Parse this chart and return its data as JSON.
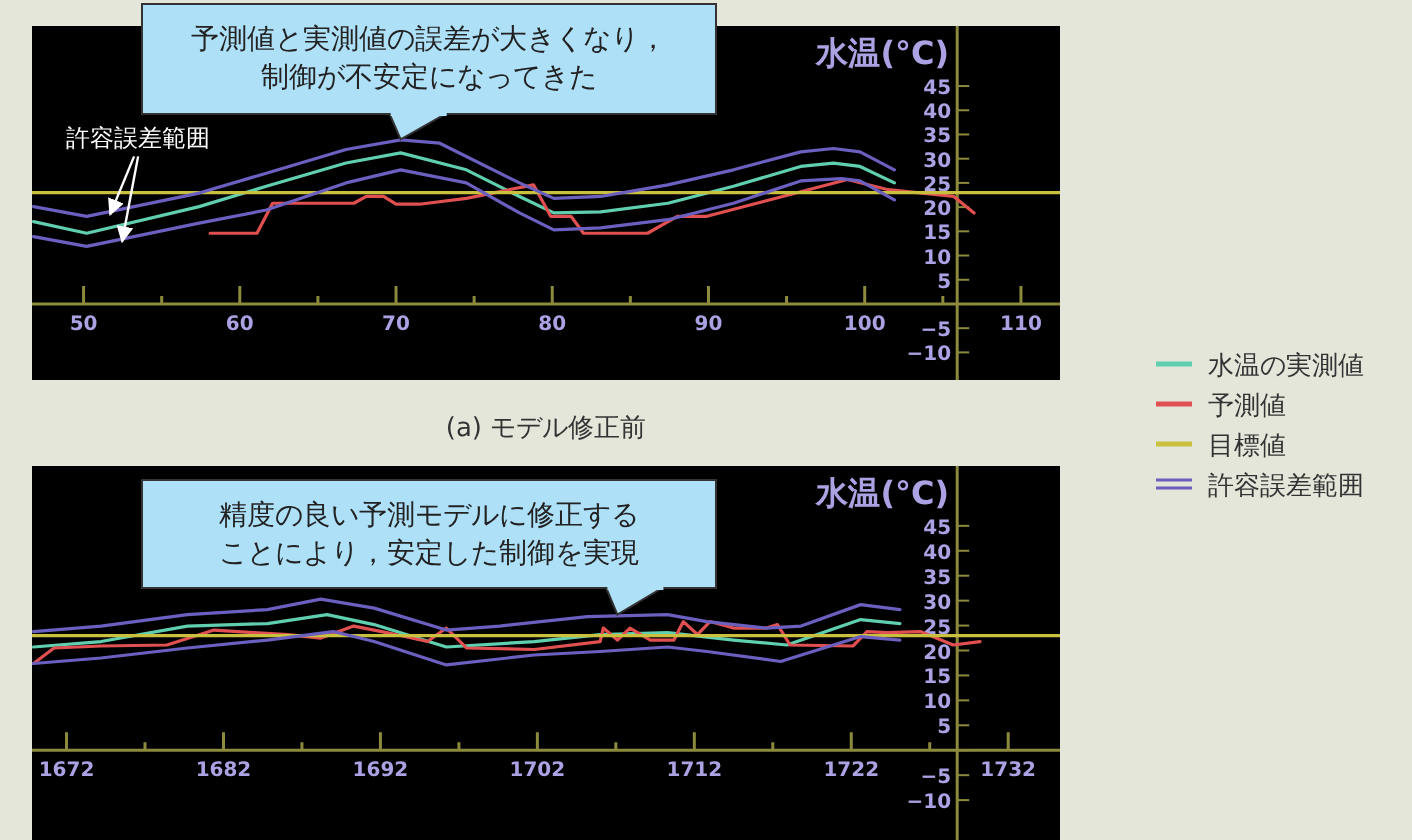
{
  "chart_data": [
    {
      "type": "line",
      "title": "(a) モデル修正前",
      "ylabel": "水温(°C)",
      "legend": "right",
      "grid": false,
      "xlim": [
        46.7,
        112.5
      ],
      "ylim": [
        -15.7,
        57.4
      ],
      "xticks": [
        50,
        {
          "value": 55,
          "label": null
        },
        60,
        {
          "value": 65,
          "label": null
        },
        70,
        {
          "value": 75,
          "label": null
        },
        80,
        {
          "value": 85,
          "label": null
        },
        90,
        {
          "value": 95,
          "label": null
        },
        100,
        {
          "value": 105,
          "label": null
        },
        110
      ],
      "yticks": [
        45,
        40,
        35,
        30,
        25,
        20,
        15,
        10,
        5,
        {
          "value": 0,
          "label": null
        },
        {
          "value": -5,
          "label": "−5"
        },
        {
          "value": -10,
          "label": "−10"
        }
      ],
      "series": [
        {
          "name": "水温の実測値",
          "color": "#5fcfb0",
          "x": [
            46.8,
            50.2,
            57.4,
            61.7,
            66.8,
            70.3,
            74.5,
            77.9,
            80.1,
            83.1,
            87.4,
            91.6,
            95.9,
            98.0,
            99.7,
            101.9
          ],
          "values": [
            17.0,
            14.6,
            20.1,
            24.3,
            29.1,
            31.2,
            27.7,
            22.2,
            18.8,
            19.0,
            20.8,
            24.3,
            28.4,
            29.1,
            28.4,
            25.0
          ]
        },
        {
          "name": "予測値",
          "color": "#e05050",
          "x": [
            58.1,
            61.1,
            62.1,
            67.3,
            68.1,
            69.2,
            70.0,
            71.5,
            74.5,
            78.8,
            79.9,
            81.2,
            82.0,
            86.1,
            88.0,
            89.9,
            98.9,
            101.5,
            105.7,
            107.0
          ],
          "values": [
            14.6,
            14.6,
            20.8,
            20.8,
            22.2,
            22.2,
            20.6,
            20.6,
            21.8,
            24.6,
            18.1,
            18.1,
            14.6,
            14.6,
            18.1,
            18.1,
            25.7,
            23.6,
            22.2,
            18.8
          ]
        },
        {
          "name": "目標値",
          "color": "#c9c040",
          "x": [
            46.7,
            112.5
          ],
          "values": [
            23,
            23
          ]
        },
        {
          "name": "許容誤差範囲",
          "color": "#6b5fc0",
          "x": [
            46.8,
            50.2,
            57.4,
            61.7,
            66.8,
            70.3,
            72.8,
            77.9,
            80.1,
            83.1,
            87.4,
            91.6,
            95.9,
            98.0,
            99.7,
            101.9
          ],
          "values": [
            20.1,
            18.1,
            22.9,
            27.0,
            31.9,
            33.9,
            33.2,
            25.0,
            21.8,
            22.2,
            24.6,
            27.7,
            31.4,
            32.1,
            31.4,
            27.7
          ]
        },
        {
          "color": "#6b5fc0",
          "x": [
            46.8,
            50.2,
            57.4,
            61.7,
            66.8,
            70.3,
            74.5,
            77.9,
            80.1,
            83.1,
            87.4,
            91.6,
            95.9,
            98.5,
            99.7,
            101.9
          ],
          "values": [
            13.9,
            11.9,
            16.7,
            19.4,
            25.0,
            27.7,
            25.0,
            18.8,
            15.3,
            15.7,
            17.4,
            20.8,
            25.4,
            25.9,
            25.4,
            21.5
          ]
        }
      ],
      "annotations": [
        {
          "text": "予測値と実測値の誤差が大きくなり，制御が不安定になってきた",
          "x": 70.3,
          "y": 34
        },
        {
          "text": "許容誤差範囲",
          "x": 51.7,
          "y": 18.5
        }
      ]
    },
    {
      "type": "line",
      "ylabel": "水温(°C)",
      "grid": false,
      "xlim": [
        1669.8,
        1735.3
      ],
      "ylim": [
        -18,
        57
      ],
      "xticks": [
        1672,
        {
          "value": 1677,
          "label": null
        },
        1682,
        {
          "value": 1687,
          "label": null
        },
        1692,
        {
          "value": 1697,
          "label": null
        },
        1702,
        {
          "value": 1707,
          "label": null
        },
        1712,
        {
          "value": 1717,
          "label": null
        },
        1722,
        {
          "value": 1727,
          "label": null
        },
        1732
      ],
      "yticks": [
        45,
        40,
        35,
        30,
        25,
        20,
        15,
        10,
        5,
        {
          "value": 0,
          "label": null
        },
        {
          "value": -5,
          "label": "−5"
        },
        {
          "value": -10,
          "label": "−10"
        }
      ],
      "series": [
        {
          "color": "#5fcfb0",
          "x": [
            1669.9,
            1674.2,
            1679.7,
            1684.8,
            1688.6,
            1691.6,
            1696.2,
            1701.8,
            1706.0,
            1710.3,
            1714.5,
            1717.9,
            1722.6,
            1725.1
          ],
          "values": [
            20.7,
            21.8,
            24.9,
            25.4,
            27.2,
            25.2,
            20.7,
            21.8,
            23.2,
            23.6,
            22.1,
            21.1,
            26.2,
            25.4
          ]
        },
        {
          "color": "#e05050",
          "x": [
            1669.9,
            1671.2,
            1674.2,
            1678.4,
            1681.4,
            1683.9,
            1686.1,
            1688.2,
            1690.3,
            1692.4,
            1695.0,
            1696.2,
            1697.5,
            1701.8,
            1706.0,
            1706.2,
            1707.1,
            1707.9,
            1709.2,
            1710.7,
            1711.3,
            1712.2,
            1713.0,
            1714.5,
            1716.6,
            1717.3,
            1718.1,
            1722.1,
            1723.0,
            1724.3,
            1726.4,
            1728.5,
            1730.2
          ],
          "values": [
            17.4,
            20.5,
            20.9,
            21.1,
            24.1,
            23.6,
            23.2,
            22.5,
            24.9,
            23.6,
            21.8,
            24.5,
            20.5,
            20.2,
            21.8,
            24.5,
            22.1,
            24.5,
            22.1,
            22.1,
            25.8,
            23.2,
            25.8,
            24.5,
            24.5,
            25.2,
            21.1,
            20.9,
            23.8,
            23.6,
            23.8,
            21.1,
            21.8
          ]
        },
        {
          "color": "#c9c040",
          "x": [
            1669.8,
            1735.3
          ],
          "values": [
            23,
            23
          ]
        },
        {
          "color": "#6b5fc0",
          "x": [
            1669.9,
            1674.2,
            1679.7,
            1684.8,
            1688.2,
            1691.6,
            1696.2,
            1699.6,
            1705.2,
            1710.3,
            1712.8,
            1716.6,
            1718.8,
            1722.6,
            1725.1
          ],
          "values": [
            23.8,
            24.9,
            27.2,
            28.2,
            30.3,
            28.5,
            24.1,
            24.9,
            26.8,
            27.2,
            25.8,
            24.5,
            24.9,
            29.2,
            28.2
          ]
        },
        {
          "color": "#6b5fc0",
          "x": [
            1669.9,
            1674.2,
            1679.7,
            1684.8,
            1689.0,
            1691.6,
            1696.2,
            1701.8,
            1706.0,
            1710.3,
            1712.8,
            1717.5,
            1722.6,
            1725.1
          ],
          "values": [
            17.4,
            18.5,
            20.5,
            22.1,
            23.8,
            21.8,
            17.1,
            19.1,
            19.8,
            20.7,
            19.8,
            17.8,
            22.8,
            22.1
          ]
        }
      ],
      "annotations": [
        {
          "text": "精度の良い予測モデルに修正することにより，安定した制御を実現",
          "x": 1707.1,
          "y": 27.2
        }
      ]
    }
  ]
}
